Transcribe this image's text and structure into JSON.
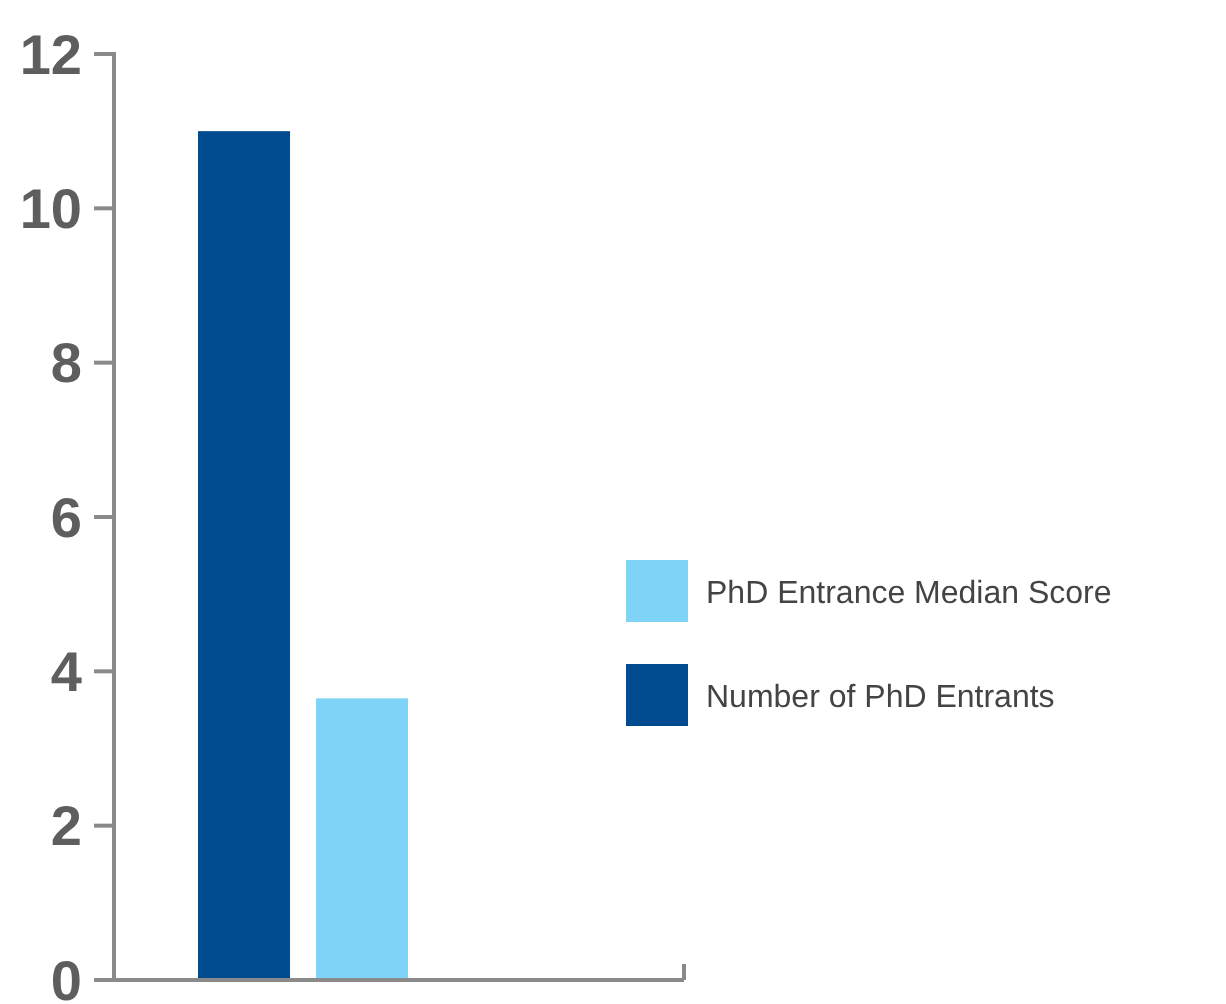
{
  "chart_data": {
    "type": "bar",
    "categories": [
      null
    ],
    "series": [
      {
        "name": "Number of PhD Entrants",
        "color": "#004a8f",
        "values": [
          11
        ]
      },
      {
        "name": "PhD Entrance Median Score",
        "color": "#7fd3f7",
        "values": [
          3.65
        ]
      }
    ],
    "ylim": [
      0,
      12
    ],
    "yticks": [
      0,
      2,
      4,
      6,
      8,
      10,
      12
    ],
    "legend": "right",
    "grid": false
  }
}
